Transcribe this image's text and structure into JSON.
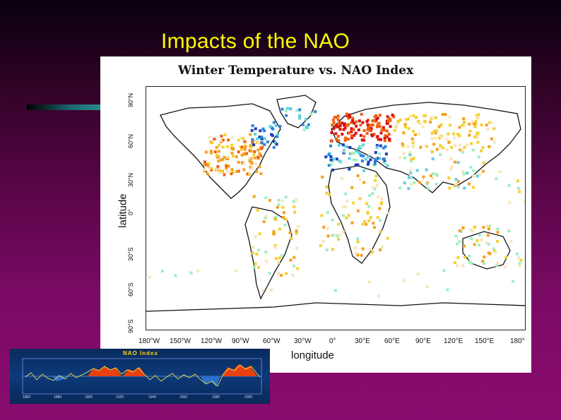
{
  "slide": {
    "title": "Impacts of the NAO",
    "accent_color": "#ffff00"
  },
  "figure": {
    "title": "Winter Temperature vs. NAO Index",
    "xlabel": "longitude",
    "ylabel": "latitude",
    "y_ticks": [
      "90°N",
      "60°N",
      "30°N",
      "0°",
      "30°S",
      "60°S",
      "90°S"
    ],
    "x_ticks": [
      "180°W",
      "150°W",
      "120°W",
      "90°W",
      "60°W",
      "30°W",
      "0°",
      "30°E",
      "60°E",
      "90°E",
      "120°E",
      "150°E",
      "180°"
    ],
    "lon_range": [
      -180,
      180
    ],
    "lat_range": [
      -90,
      90
    ],
    "color_scale": [
      "#1a3fbf",
      "#2a86d9",
      "#5fd0e0",
      "#9ef0c0",
      "#f8e6b8",
      "#f5d030",
      "#f5a020",
      "#f06010",
      "#d81010"
    ],
    "clusters": [
      {
        "name": "north-america-warm",
        "lon": [
          -125,
          -70
        ],
        "lat": [
          25,
          55
        ],
        "count": 140,
        "levels": [
          4,
          5,
          6,
          7,
          6
        ]
      },
      {
        "name": "northeast-canada-cold",
        "lon": [
          -80,
          -55
        ],
        "lat": [
          45,
          62
        ],
        "count": 30,
        "levels": [
          0,
          1,
          2
        ]
      },
      {
        "name": "greenland-cold",
        "lon": [
          -60,
          -20
        ],
        "lat": [
          58,
          76
        ],
        "count": 20,
        "levels": [
          1,
          2,
          3
        ]
      },
      {
        "name": "northern-europe-warm",
        "lon": [
          -5,
          55
        ],
        "lat": [
          50,
          70
        ],
        "count": 120,
        "levels": [
          7,
          8,
          8,
          7
        ]
      },
      {
        "name": "mediterranean-cold",
        "lon": [
          -10,
          50
        ],
        "lat": [
          28,
          48
        ],
        "count": 70,
        "levels": [
          0,
          1,
          2,
          3
        ]
      },
      {
        "name": "siberia-warm",
        "lon": [
          55,
          150
        ],
        "lat": [
          45,
          70
        ],
        "count": 110,
        "levels": [
          5,
          6,
          5,
          4
        ]
      },
      {
        "name": "asia-mixed",
        "lon": [
          60,
          140
        ],
        "lat": [
          15,
          45
        ],
        "count": 70,
        "levels": [
          3,
          4,
          5,
          6,
          2
        ]
      },
      {
        "name": "south-america",
        "lon": [
          -80,
          -35
        ],
        "lat": [
          -50,
          10
        ],
        "count": 60,
        "levels": [
          4,
          5,
          6,
          3
        ]
      },
      {
        "name": "africa",
        "lon": [
          -15,
          50
        ],
        "lat": [
          -35,
          25
        ],
        "count": 80,
        "levels": [
          4,
          5,
          5,
          6,
          3
        ]
      },
      {
        "name": "australia",
        "lon": [
          112,
          155
        ],
        "lat": [
          -42,
          -12
        ],
        "count": 45,
        "levels": [
          4,
          5,
          6,
          3
        ]
      },
      {
        "name": "pacific-islands",
        "lon": [
          150,
          180
        ],
        "lat": [
          -45,
          30
        ],
        "count": 20,
        "levels": [
          3,
          4,
          5
        ]
      },
      {
        "name": "southern-ocean",
        "lon": [
          -180,
          180
        ],
        "lat": [
          -65,
          -45
        ],
        "count": 18,
        "levels": [
          3,
          4
        ]
      }
    ]
  },
  "inset": {
    "title": "NAO Index",
    "x_ticks": [
      "1860",
      "1880",
      "1900",
      "1920",
      "1940",
      "1960",
      "1980",
      "2000"
    ]
  }
}
